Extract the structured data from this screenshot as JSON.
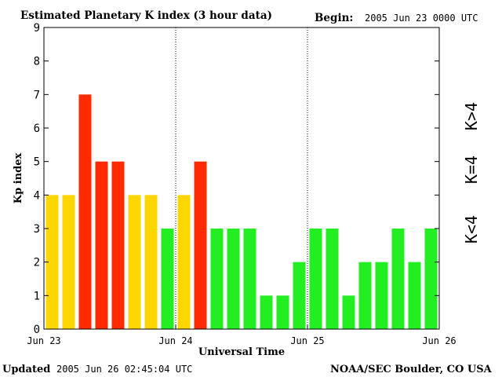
{
  "header": {
    "title": "Estimated Planetary K index (3 hour data)",
    "begin_label": "Begin:",
    "begin_value": "2005 Jun 23 0000 UTC"
  },
  "footer": {
    "updated_label": "Updated",
    "updated_value": "2005 Jun 26 02:45:04 UTC",
    "source": "NOAA/SEC Boulder, CO USA"
  },
  "legend": {
    "above": "K>4",
    "equal": "K=4",
    "below": "K<4"
  },
  "colors": {
    "above": "#ff2a00",
    "equal": "#ffd700",
    "below": "#22ee22"
  },
  "chart_data": {
    "type": "bar",
    "title": "Estimated Planetary K index (3 hour data)",
    "xlabel": "Universal Time",
    "ylabel": "Kp index",
    "ylim": [
      0,
      9
    ],
    "yticks": [
      "0",
      "1",
      "2",
      "3",
      "4",
      "5",
      "6",
      "7",
      "8",
      "9"
    ],
    "xticks": [
      "Jun 23",
      "Jun 24",
      "Jun 25",
      "Jun 26"
    ],
    "day_separators": [
      "Jun 24",
      "Jun 25"
    ],
    "values": [
      4,
      4,
      7,
      5,
      5,
      4,
      4,
      3,
      4,
      5,
      3,
      3,
      3,
      1,
      1,
      2,
      3,
      3,
      1,
      2,
      2,
      3,
      2,
      3
    ],
    "grid": false
  }
}
